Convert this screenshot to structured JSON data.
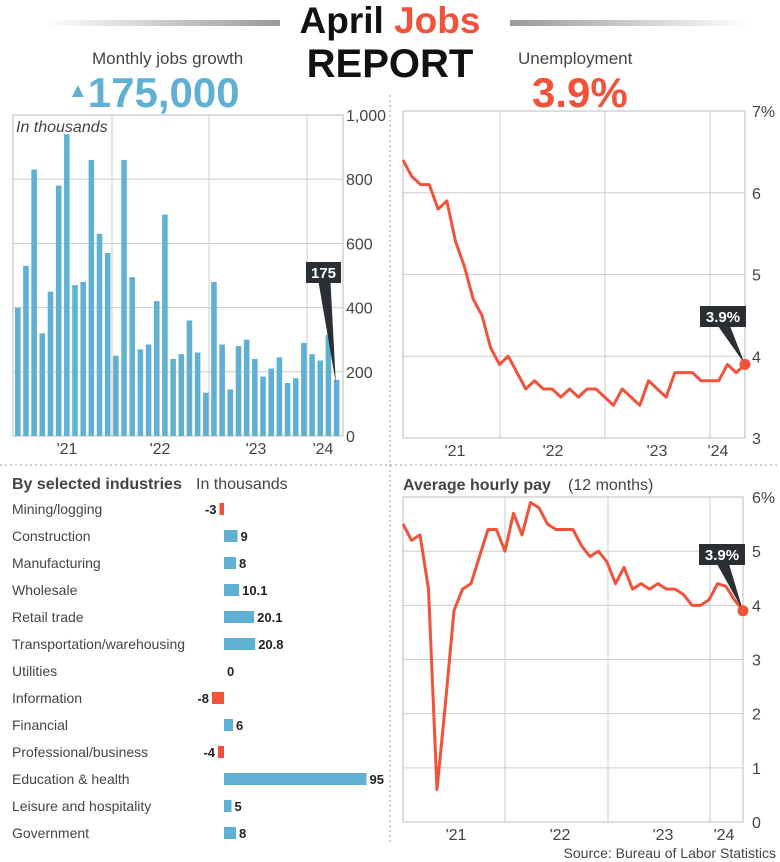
{
  "header": {
    "title_part1": "April",
    "title_part2": "Jobs",
    "subtitle": "REPORT"
  },
  "jobs": {
    "label": "Monthly jobs growth",
    "value": "175,000",
    "trend_icon": "triangle-up-icon"
  },
  "unemployment": {
    "label": "Unemployment",
    "value": "3.9%"
  },
  "colors": {
    "blue": "#5fb0d3",
    "red": "#f0523a",
    "dark": "#2b2f33"
  },
  "source": "Source: Bureau of Labor Statistics",
  "chart_data": [
    {
      "type": "bar",
      "title": "",
      "note": "In thousands",
      "ylim": [
        0,
        1000
      ],
      "yticks": [
        "0",
        "200",
        "400",
        "600",
        "800",
        "1,000"
      ],
      "xticks": [
        "'21",
        "'22",
        "'23",
        "'24"
      ],
      "values": [
        400,
        530,
        830,
        320,
        450,
        780,
        940,
        470,
        480,
        860,
        630,
        570,
        250,
        860,
        495,
        270,
        285,
        420,
        690,
        240,
        255,
        360,
        260,
        135,
        480,
        285,
        145,
        280,
        300,
        240,
        185,
        210,
        245,
        165,
        180,
        290,
        255,
        235,
        315,
        175
      ],
      "callout": "175"
    },
    {
      "type": "line",
      "title": "",
      "ylim": [
        3,
        7
      ],
      "yticks": [
        "3",
        "4",
        "5",
        "6",
        "7%"
      ],
      "xticks": [
        "'21",
        "'22",
        "'23",
        "'24"
      ],
      "values": [
        6.4,
        6.2,
        6.1,
        6.1,
        5.8,
        5.9,
        5.4,
        5.1,
        4.7,
        4.5,
        4.1,
        3.9,
        4.0,
        3.8,
        3.6,
        3.7,
        3.6,
        3.6,
        3.5,
        3.6,
        3.5,
        3.6,
        3.6,
        3.5,
        3.4,
        3.6,
        3.5,
        3.4,
        3.7,
        3.6,
        3.5,
        3.8,
        3.8,
        3.8,
        3.7,
        3.7,
        3.7,
        3.9,
        3.8,
        3.9
      ],
      "callout": "3.9%"
    },
    {
      "type": "bar",
      "orientation": "horizontal",
      "title": "By selected industries",
      "subtitle": "In thousands",
      "categories": [
        "Mining/logging",
        "Construction",
        "Manufacturing",
        "Wholesale",
        "Retail trade",
        "Transportation/warehousing",
        "Utilities",
        "Information",
        "Financial",
        "Professional/business",
        "Education & health",
        "Leisure and hospitality",
        "Government"
      ],
      "values": [
        -3,
        9,
        8,
        10.1,
        20.1,
        20.8,
        0,
        -8,
        6,
        -4,
        95,
        5,
        8
      ],
      "labels": [
        "-3",
        "9",
        "8",
        "10.1",
        "20.1",
        "20.8",
        "0",
        "-8",
        "6",
        "-4",
        "95",
        "5",
        "8"
      ]
    },
    {
      "type": "line",
      "title": "Average hourly pay",
      "subtitle": "(12 months)",
      "ylim": [
        0,
        6
      ],
      "yticks": [
        "0",
        "1",
        "2",
        "3",
        "4",
        "5",
        "6%"
      ],
      "xticks": [
        "'21",
        "'22",
        "'23",
        "'24"
      ],
      "values": [
        5.5,
        5.2,
        5.3,
        4.3,
        0.6,
        2.2,
        3.9,
        4.3,
        4.4,
        4.9,
        5.4,
        5.4,
        5.0,
        5.7,
        5.3,
        5.9,
        5.8,
        5.5,
        5.4,
        5.4,
        5.4,
        5.1,
        4.9,
        5.0,
        4.8,
        4.4,
        4.7,
        4.3,
        4.4,
        4.3,
        4.4,
        4.3,
        4.3,
        4.2,
        4.0,
        4.0,
        4.1,
        4.4,
        4.35,
        4.1,
        3.9
      ],
      "callout": "3.9%"
    }
  ]
}
